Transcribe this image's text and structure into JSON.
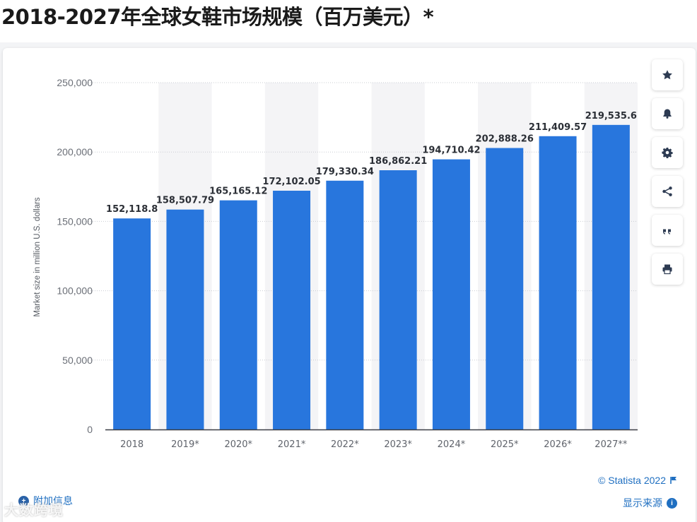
{
  "page": {
    "title": "2018-2027年全球女鞋市场规模（百万美元）*"
  },
  "chart_data": {
    "type": "bar",
    "ylabel": "Market size in million U.S. dollars",
    "xlabel": "",
    "ylim": [
      0,
      250000
    ],
    "yticks": [
      0,
      50000,
      100000,
      150000,
      200000,
      250000
    ],
    "ytick_labels": [
      "0",
      "50,000",
      "100,000",
      "150,000",
      "200,000",
      "250,000"
    ],
    "grid": true,
    "categories": [
      "2018",
      "2019*",
      "2020*",
      "2021*",
      "2022*",
      "2023*",
      "2024*",
      "2025*",
      "2026*",
      "2027**"
    ],
    "values": [
      152118.8,
      158507.79,
      165165.12,
      172102.05,
      179330.34,
      186862.21,
      194710.42,
      202888.26,
      211409.57,
      219535.6
    ],
    "value_labels": [
      "152,118.8",
      "158,507.79",
      "165,165.12",
      "172,102.05",
      "179,330.34",
      "186,862.21",
      "194,710.42",
      "202,888.26",
      "211,409.57",
      "219,535.6"
    ],
    "bar_color": "#2876dd",
    "band_color": "#f4f4f6"
  },
  "toolbar": {
    "buttons": [
      {
        "name": "favorite-button",
        "icon": "star-icon"
      },
      {
        "name": "notify-button",
        "icon": "bell-icon"
      },
      {
        "name": "settings-button",
        "icon": "gear-icon"
      },
      {
        "name": "share-button",
        "icon": "share-icon"
      },
      {
        "name": "cite-button",
        "icon": "quote-icon"
      },
      {
        "name": "print-button",
        "icon": "printer-icon"
      }
    ]
  },
  "footer": {
    "more_info": "附加信息",
    "credit": "© Statista 2022",
    "show_source": "显示来源",
    "watermark": "大数跨境"
  },
  "colors": {
    "accent": "#1f6fc1",
    "bars": "#2876dd"
  }
}
